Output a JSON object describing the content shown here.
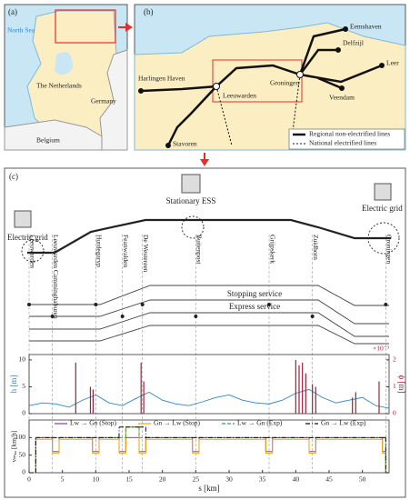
{
  "panel_a": {
    "label": "(a)",
    "labels": [
      "North Sea",
      "The Netherlands",
      "Germany",
      "Belgium"
    ]
  },
  "panel_b": {
    "label": "(b)",
    "stations": [
      "Eemshaven",
      "Delfzijl",
      "Leer",
      "Harlingen Haven",
      "Groningen",
      "Leeuwarden",
      "Veendam",
      "Stavoren"
    ],
    "legend": [
      "Regional non-electrified lines",
      "National electrified lines"
    ]
  },
  "panel_c": {
    "label": "(c)",
    "ess": "Stationary ESS",
    "grid_labels": [
      "Electric grid",
      "Electric grid"
    ],
    "services": [
      "Stopping service",
      "Express service"
    ],
    "stations": [
      {
        "name": "Leeuwarden",
        "km": 0
      },
      {
        "name": "Leeuwarden Camminghaburen",
        "km": 3.5
      },
      {
        "name": "Hurdegaryp",
        "km": 10
      },
      {
        "name": "Feanwalden",
        "km": 14
      },
      {
        "name": "De Westereen",
        "km": 17
      },
      {
        "name": "Buitenpost",
        "km": 25
      },
      {
        "name": "Grijpskerk",
        "km": 36
      },
      {
        "name": "Zuidhorn",
        "km": 42.5
      },
      {
        "name": "Groningen",
        "km": 53.5
      }
    ]
  },
  "chart_data": [
    {
      "type": "line",
      "ylabel": "h [m]",
      "y2label": "ϕ [m]",
      "y2scale": "×10⁻³",
      "xlim": [
        0,
        54
      ],
      "ylim": [
        0,
        11
      ],
      "yticks": [
        0,
        5,
        10
      ],
      "y2lim": [
        0,
        2.2
      ],
      "y2ticks": [
        0,
        1,
        2
      ],
      "series": [
        {
          "color": "#2e86c1",
          "x": [
            0,
            2,
            4,
            6,
            8,
            10,
            12,
            14,
            16,
            18,
            20,
            22,
            24,
            26,
            28,
            30,
            32,
            34,
            36,
            38,
            40,
            42,
            44,
            46,
            48,
            50,
            52,
            54
          ],
          "values": [
            1.5,
            2,
            1.8,
            1.2,
            2.5,
            3.5,
            2,
            1.5,
            2.8,
            4,
            2.5,
            1.8,
            1.5,
            2.2,
            3,
            3.5,
            2.5,
            2,
            1.8,
            2.5,
            3.8,
            4.5,
            3,
            2,
            2.5,
            3,
            1.5,
            1
          ]
        },
        {
          "color": "#a0203a",
          "axis": "y2",
          "x": [
            7,
            9.2,
            9.6,
            16.8,
            17.2,
            40,
            40.5,
            41,
            41.5,
            42.5,
            43,
            48.5,
            49,
            52.5
          ],
          "values": [
            1.9,
            1.0,
            0.9,
            1.9,
            1.2,
            2.0,
            1.8,
            1.9,
            1.5,
            1.1,
            1.0,
            0.6,
            0.8,
            1.2
          ]
        }
      ]
    },
    {
      "type": "step",
      "ylabel": "vₘₐₓ [km/h]",
      "xlabel": "s [km]",
      "xlim": [
        0,
        54
      ],
      "xticks": [
        0,
        5,
        10,
        15,
        20,
        25,
        30,
        35,
        40,
        45,
        50
      ],
      "ylim": [
        0,
        150
      ],
      "yticks": [
        0,
        50,
        100
      ],
      "legend": "top",
      "x": [
        0,
        1,
        3.5,
        4.5,
        9.5,
        10.5,
        13.5,
        14.5,
        16.5,
        17.5,
        24.5,
        25.5,
        35.5,
        36.5,
        42,
        43,
        53,
        53.5
      ],
      "series": [
        {
          "name": "Lw → Gn (Stop)",
          "color": "#7e3fa0",
          "dash": "none",
          "values": [
            0,
            100,
            60,
            100,
            60,
            100,
            60,
            100,
            60,
            100,
            60,
            100,
            60,
            100,
            60,
            100,
            60,
            0
          ]
        },
        {
          "name": "Gn → Lw (Stop)",
          "color": "#e8a800",
          "dash": "none",
          "values": [
            0,
            95,
            55,
            95,
            55,
            95,
            55,
            130,
            55,
            95,
            55,
            95,
            55,
            95,
            55,
            95,
            55,
            0
          ]
        },
        {
          "name": "Lw → Gn (Exp)",
          "color": "#3a9a5a",
          "dash": "4 2",
          "values": [
            0,
            100,
            100,
            100,
            100,
            100,
            100,
            130,
            100,
            100,
            100,
            100,
            100,
            100,
            100,
            100,
            100,
            0
          ]
        },
        {
          "name": "Gn → Lw (Exp)",
          "color": "#111111",
          "dash": "5 2 1 2",
          "values": [
            0,
            100,
            100,
            100,
            100,
            100,
            130,
            130,
            130,
            100,
            100,
            100,
            100,
            100,
            100,
            100,
            100,
            0
          ]
        }
      ]
    }
  ]
}
